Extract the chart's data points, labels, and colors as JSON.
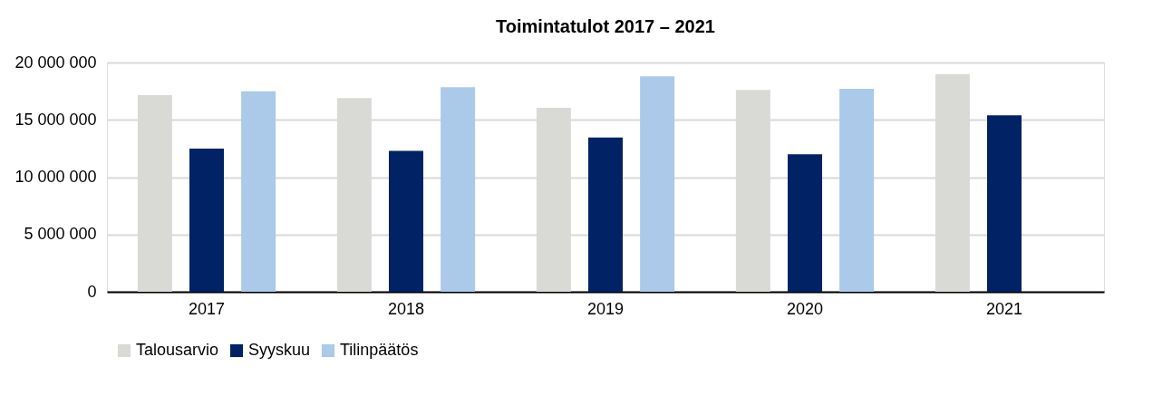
{
  "chart_data": {
    "type": "bar",
    "title": "Toimintatulot 2017 – 2021",
    "categories": [
      "2017",
      "2018",
      "2019",
      "2020",
      "2021"
    ],
    "series": [
      {
        "name": "Talousarvio",
        "color": "#d9d9d5",
        "values": [
          17150000,
          16900000,
          16050000,
          17600000,
          19000000
        ]
      },
      {
        "name": "Syyskuu",
        "color": "#022266",
        "values": [
          12500000,
          12300000,
          13450000,
          12000000,
          15400000
        ]
      },
      {
        "name": "Tilinpäätös",
        "color": "#abc9e8",
        "values": [
          17500000,
          17850000,
          18800000,
          17700000,
          null
        ]
      }
    ],
    "ylim": [
      0,
      20000000
    ],
    "yticks": [
      {
        "value": 0,
        "label": "0"
      },
      {
        "value": 5000000,
        "label": "5 000 000"
      },
      {
        "value": 10000000,
        "label": "10 000 000"
      },
      {
        "value": 15000000,
        "label": "15 000 000"
      },
      {
        "value": 20000000,
        "label": "20 000 000"
      }
    ],
    "grid": "y",
    "legend": "bottom"
  }
}
